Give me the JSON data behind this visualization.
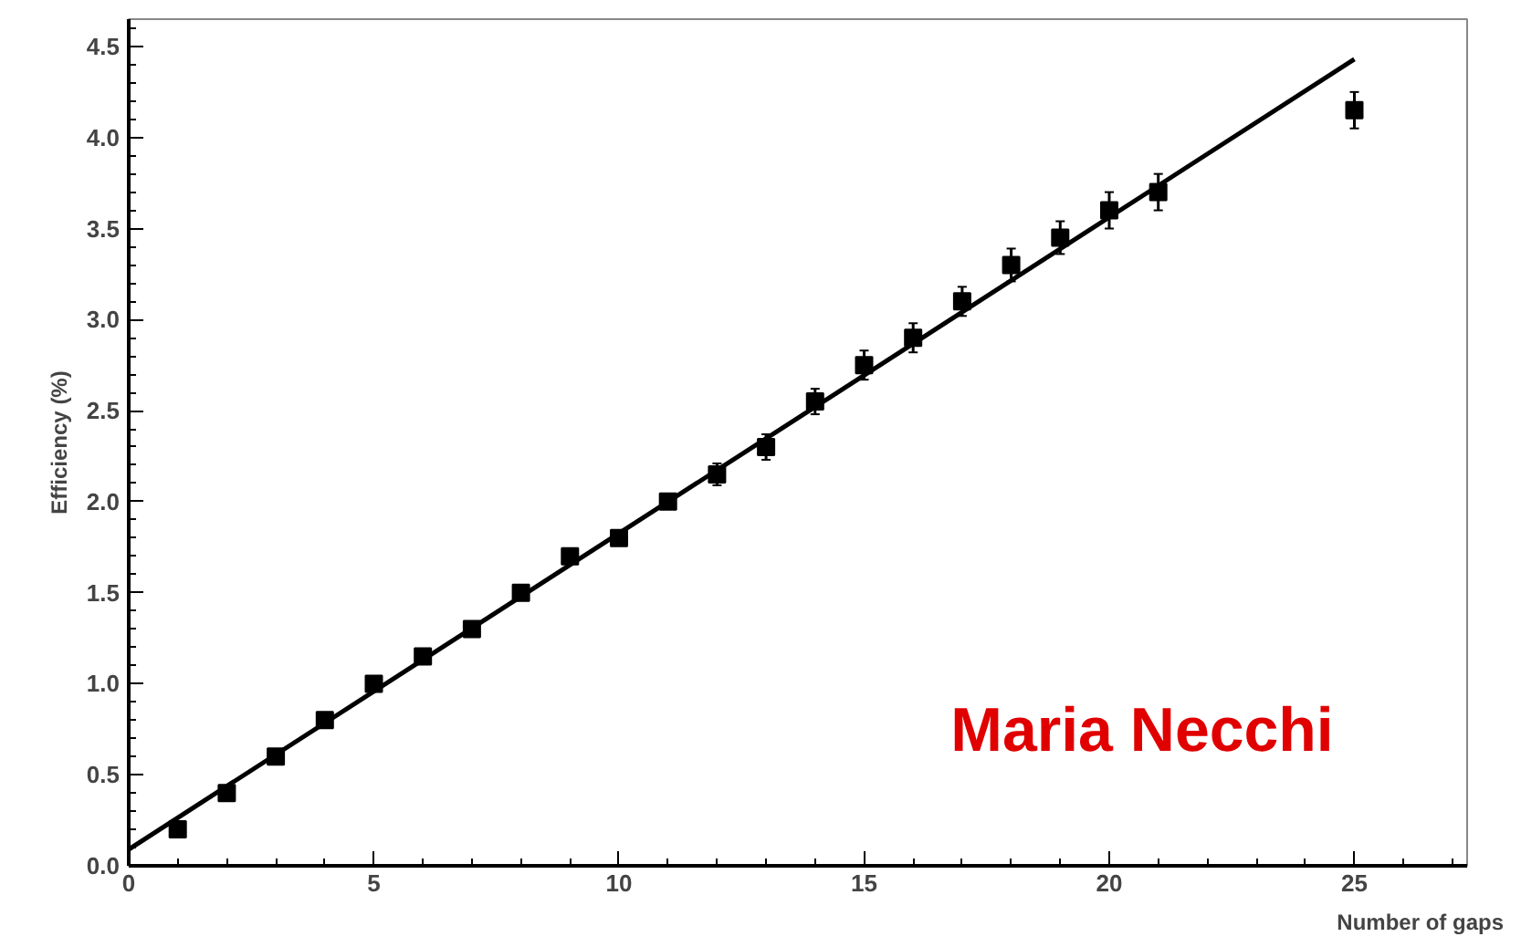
{
  "chart_data": {
    "type": "scatter",
    "xlabel": "Number of gaps",
    "ylabel": "Efficiency (%)",
    "xlim": [
      0,
      27.3
    ],
    "ylim": [
      0,
      4.65
    ],
    "xticks": [
      0,
      5,
      10,
      15,
      20,
      25
    ],
    "yticks": [
      {
        "value": 0,
        "label": "0.0"
      },
      0.5,
      {
        "value": 1,
        "label": "1.0"
      },
      1.5,
      {
        "value": 2,
        "label": "2.0"
      },
      2.5,
      {
        "value": 3,
        "label": "3.0"
      },
      3.5,
      {
        "value": 4,
        "label": "4.0"
      },
      4.5
    ],
    "grid": false,
    "series": [
      {
        "color": "#000000",
        "marker": "square",
        "x": [
          1,
          2,
          3,
          4,
          5,
          6,
          7,
          8,
          9,
          10,
          11,
          12,
          13,
          14,
          15,
          16,
          17,
          18,
          19,
          20,
          21,
          25
        ],
        "values": [
          0.2,
          0.4,
          0.6,
          0.8,
          1.0,
          1.15,
          1.3,
          1.5,
          1.7,
          1.8,
          2.0,
          2.15,
          2.3,
          2.55,
          2.75,
          2.9,
          3.1,
          3.3,
          3.45,
          3.6,
          3.7,
          4.15
        ],
        "errors": [
          null,
          null,
          null,
          null,
          null,
          null,
          null,
          null,
          null,
          null,
          null,
          0.06,
          0.07,
          0.07,
          0.08,
          0.08,
          0.08,
          0.09,
          0.09,
          0.1,
          0.1,
          0.1
        ]
      },
      {
        "type": "line",
        "color": "#000000",
        "marker": "none",
        "x": [
          0,
          25
        ],
        "values": [
          0.09,
          4.43
        ],
        "line_style": "solid"
      }
    ],
    "annotations": [
      "Maria Necchi"
    ]
  }
}
